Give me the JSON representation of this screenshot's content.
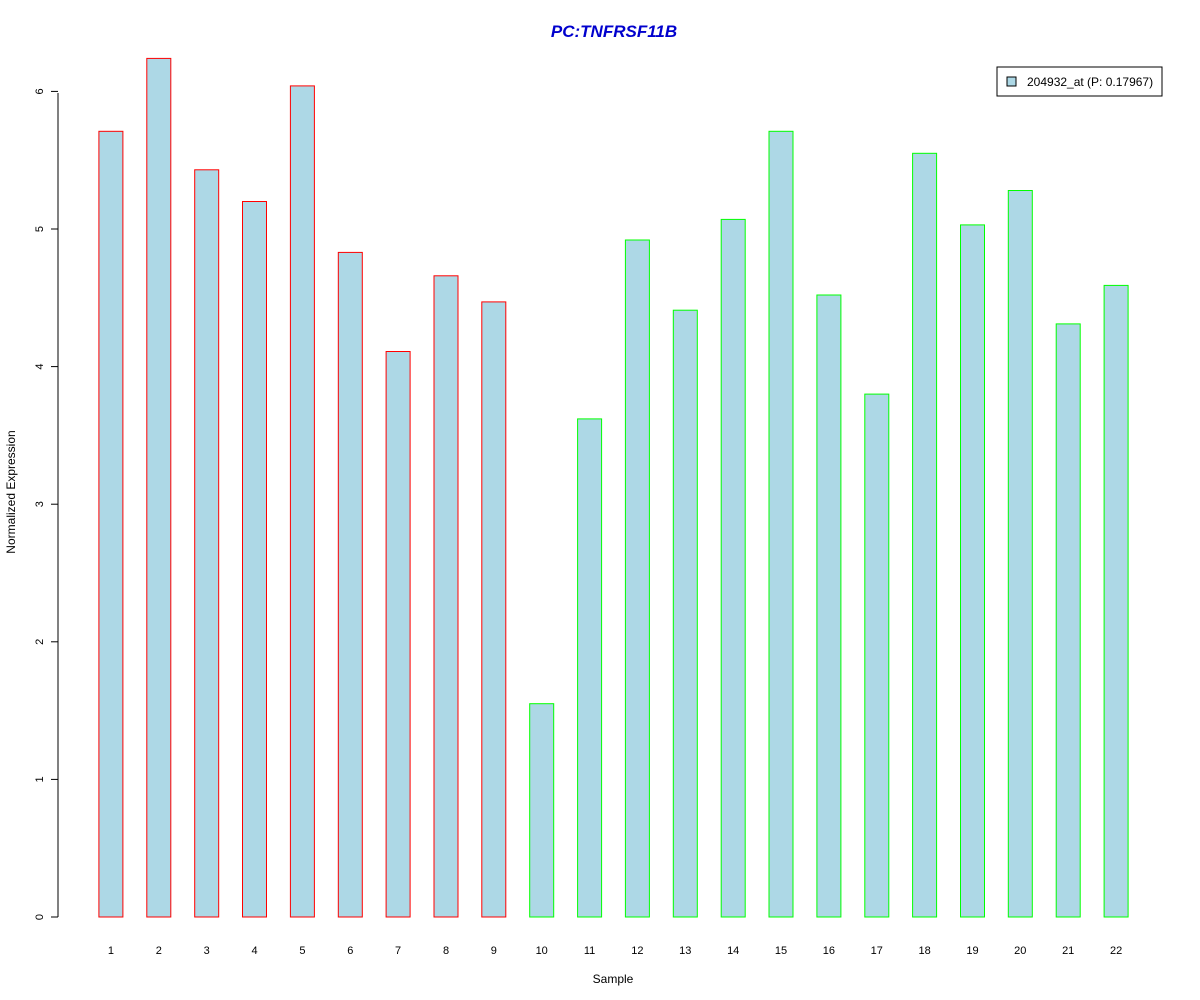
{
  "chart_data": {
    "type": "bar",
    "title": "PC:TNFRSF11B",
    "xlabel": "Sample",
    "ylabel": "Normalized Expression",
    "categories": [
      "1",
      "2",
      "3",
      "4",
      "5",
      "6",
      "7",
      "8",
      "9",
      "10",
      "11",
      "12",
      "13",
      "14",
      "15",
      "16",
      "17",
      "18",
      "19",
      "20",
      "21",
      "22"
    ],
    "values": [
      5.71,
      6.24,
      5.43,
      5.2,
      6.04,
      4.83,
      4.11,
      4.66,
      4.47,
      1.55,
      3.62,
      4.92,
      4.41,
      5.07,
      5.71,
      4.52,
      3.8,
      5.55,
      5.03,
      5.28,
      4.31,
      4.59
    ],
    "groups": [
      1,
      1,
      1,
      1,
      1,
      1,
      1,
      1,
      1,
      2,
      2,
      2,
      2,
      2,
      2,
      2,
      2,
      2,
      2,
      2,
      2,
      2
    ],
    "y_ticks": [
      "0",
      "1",
      "2",
      "3",
      "4",
      "5",
      "6"
    ],
    "ylim": [
      0,
      6.24
    ],
    "legend": {
      "label": "204932_at (P: 0.17967)",
      "position": "top-right"
    },
    "colors": {
      "bar_fill": "#add8e6",
      "group1_border": "#ff0000",
      "group2_border": "#00ff00",
      "title": "#0000cd"
    },
    "grid": false
  }
}
